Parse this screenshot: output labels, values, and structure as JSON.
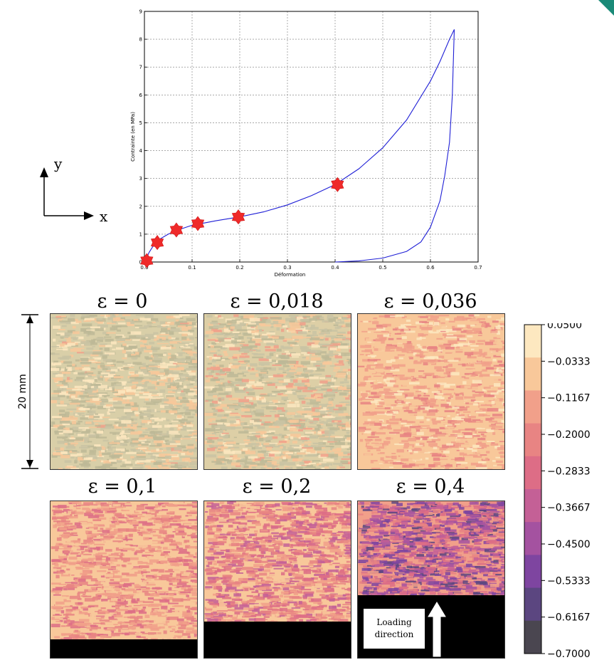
{
  "chart_data": [
    {
      "type": "line",
      "xlabel": "Déformation",
      "ylabel": "Contrainte (en MPa)",
      "xlim": [
        0,
        0.7
      ],
      "ylim": [
        0,
        9
      ],
      "xticks": [
        "0.0",
        "0.1",
        "0.2",
        "0.3",
        "0.4",
        "0.5",
        "0.6",
        "0.7"
      ],
      "yticks": [
        "0",
        "1",
        "2",
        "3",
        "4",
        "5",
        "6",
        "7",
        "8",
        "9"
      ],
      "grid": true,
      "series": [
        {
          "color": "#1f1fd6",
          "x": [
            0,
            0.01,
            0.02,
            0.03,
            0.05,
            0.07,
            0.1,
            0.15,
            0.2,
            0.25,
            0.3,
            0.35,
            0.4,
            0.45,
            0.5,
            0.55,
            0.6,
            0.62,
            0.64,
            0.65,
            0.646,
            0.64,
            0.63,
            0.62,
            0.6,
            0.58,
            0.55,
            0.5,
            0.45,
            0.4
          ],
          "y": [
            0,
            0.35,
            0.62,
            0.8,
            1.0,
            1.15,
            1.32,
            1.48,
            1.62,
            1.8,
            2.05,
            2.38,
            2.78,
            3.35,
            4.1,
            5.1,
            6.5,
            7.2,
            8.0,
            8.35,
            6.0,
            4.3,
            3.1,
            2.2,
            1.25,
            0.72,
            0.38,
            0.14,
            0.04,
            0.0
          ]
        }
      ],
      "markers": {
        "color": "#ef2a2a",
        "x": [
          0.005,
          0.027,
          0.067,
          0.112,
          0.197,
          0.405
        ],
        "y": [
          0.05,
          0.7,
          1.15,
          1.38,
          1.62,
          2.78
        ]
      }
    },
    {
      "type": "heatmap",
      "panels": [
        {
          "label": "ε = 0",
          "remaining_fraction": 1.0,
          "mean_value": -0.03
        },
        {
          "label": "ε = 0,018",
          "remaining_fraction": 1.0,
          "mean_value": -0.06
        },
        {
          "label": "ε = 0,036",
          "remaining_fraction": 1.0,
          "mean_value": -0.1
        },
        {
          "label": "ε = 0,1",
          "remaining_fraction": 0.88,
          "mean_value": -0.16
        },
        {
          "label": "ε = 0,2",
          "remaining_fraction": 0.77,
          "mean_value": -0.22
        },
        {
          "label": "ε = 0,4",
          "remaining_fraction": 0.6,
          "mean_value": -0.37
        }
      ],
      "colorbar": {
        "ticks": [
          "0.0500",
          "−0.0333",
          "−0.1167",
          "−0.2000",
          "−0.2833",
          "−0.3667",
          "−0.4500",
          "−0.5333",
          "−0.6167",
          "−0.7000"
        ],
        "colors": [
          "#fde8c0",
          "#f8c89a",
          "#f1a08a",
          "#e88483",
          "#dd6d86",
          "#c46096",
          "#a452a0",
          "#7e45a0",
          "#5b4680",
          "#4a4650"
        ]
      }
    }
  ],
  "axes_sketch": {
    "y_label": "y",
    "x_label": "x"
  },
  "scale_label": "20 mm",
  "loading_label_line1": "Loading",
  "loading_label_line2": "direction"
}
